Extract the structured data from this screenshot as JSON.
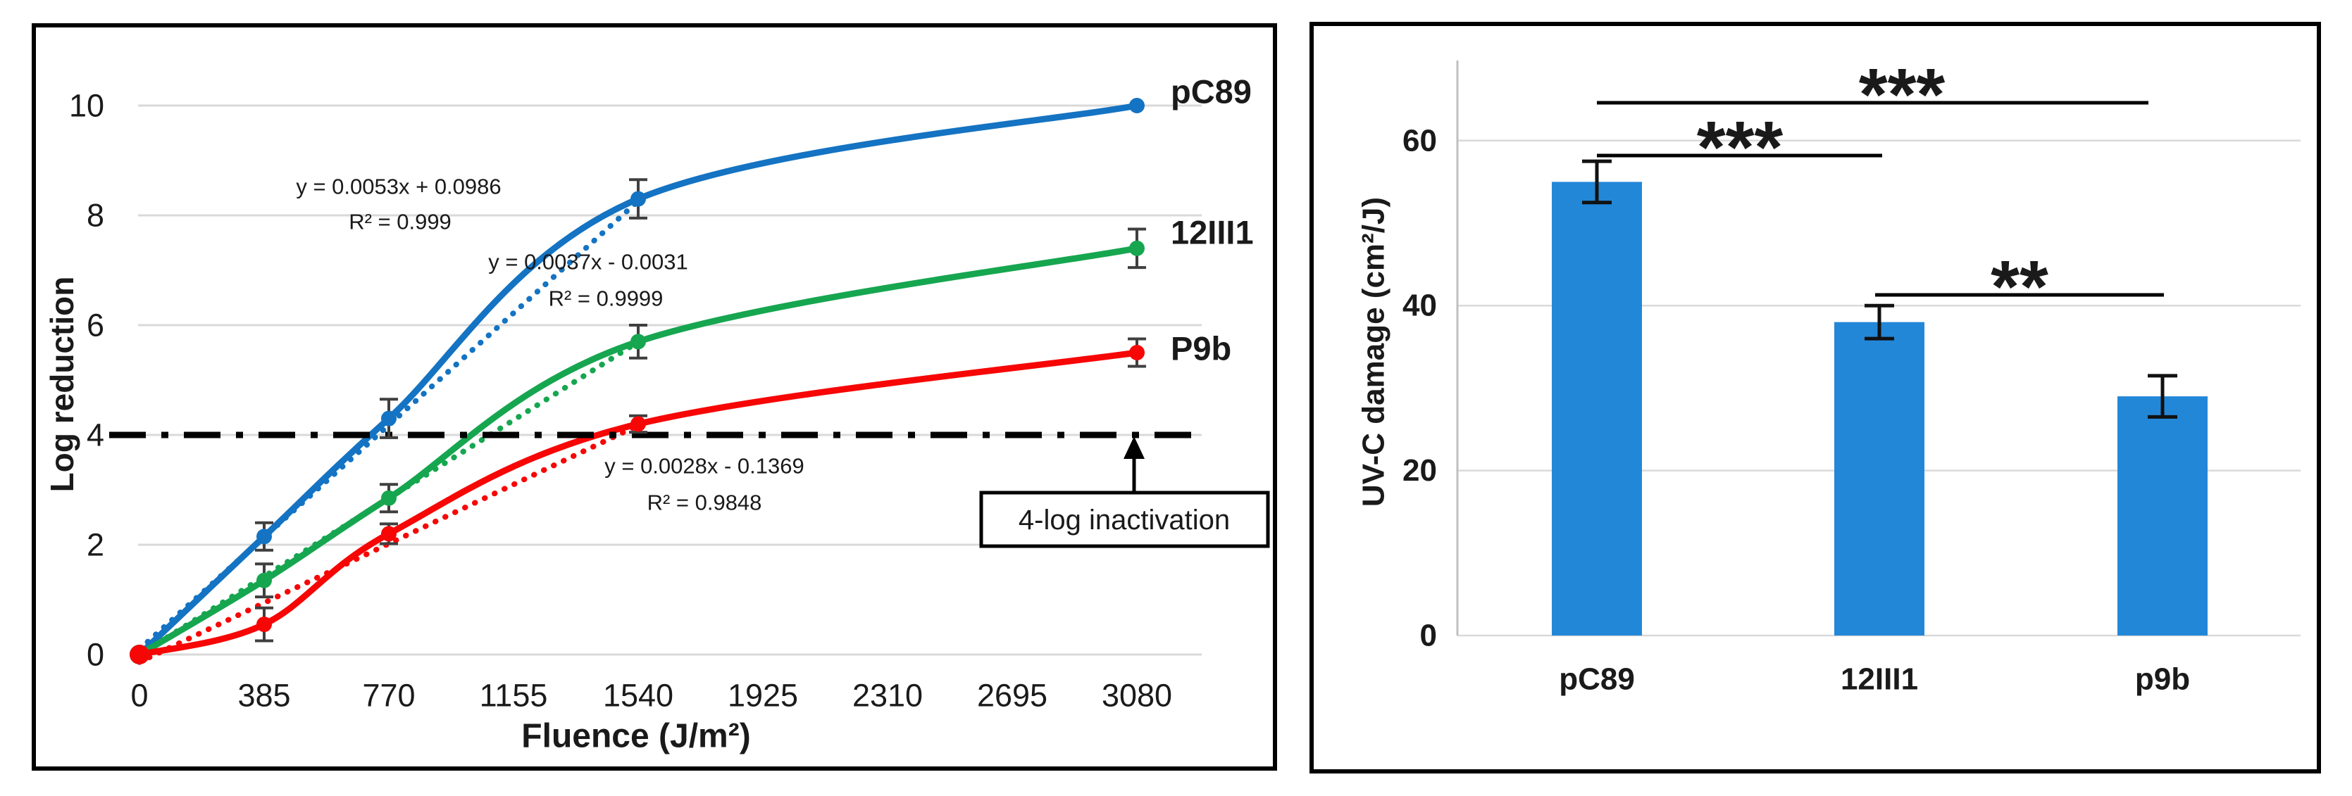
{
  "figure": {
    "panels": [
      {
        "id": "left",
        "name": "uv-dose-response-line-chart-panel"
      },
      {
        "id": "right",
        "name": "uv-damage-bar-chart-panel"
      }
    ]
  },
  "colors": {
    "line_blue": "#1473c2",
    "line_green": "#16a650",
    "line_red": "#f70606",
    "bar_blue": "#2387d8",
    "gridline": "#d9d9d9",
    "axis_line": "#bfbfbf",
    "error_bar_left": "#3f3f3f",
    "error_bar_right": "#111111",
    "equation_text": "#383838",
    "panel_border": "#000000",
    "text": "#1a1a1a"
  },
  "chart_data": [
    {
      "type": "line",
      "title": "",
      "xlabel": "Fluence (J/m²)",
      "ylabel": "Log reduction",
      "x_ticks": [
        0,
        385,
        770,
        1155,
        1540,
        1925,
        2310,
        2695,
        3080
      ],
      "y_ticks": [
        0,
        2,
        4,
        6,
        8,
        10
      ],
      "xlim": [
        0,
        3300
      ],
      "ylim": [
        0,
        10.5
      ],
      "grid": true,
      "legend_position": "right-of-last-point",
      "series": [
        {
          "name": "pC89",
          "color": "#1473c2",
          "x": [
            0,
            385,
            770,
            1540,
            3080
          ],
          "y": [
            0,
            2.15,
            4.3,
            8.3,
            10.0
          ],
          "err": [
            0,
            0.25,
            0.35,
            0.35,
            0
          ],
          "trendline": {
            "equation": "y = 0.0053x + 0.0986",
            "r2": "R² = 0.999",
            "slope": 0.0053,
            "intercept": 0.0986,
            "x_range": [
              0,
              1540
            ]
          }
        },
        {
          "name": "12III1",
          "color": "#16a650",
          "x": [
            0,
            385,
            770,
            1540,
            3080
          ],
          "y": [
            0,
            1.35,
            2.85,
            5.7,
            7.4
          ],
          "err": [
            0,
            0.3,
            0.25,
            0.3,
            0.35
          ],
          "trendline": {
            "equation": "y = 0.0037x - 0.0031",
            "r2": "R² = 0.9999",
            "slope": 0.0037,
            "intercept": -0.0031,
            "x_range": [
              0,
              1540
            ]
          }
        },
        {
          "name": "P9b",
          "color": "#f70606",
          "x": [
            0,
            385,
            770,
            1540,
            3080
          ],
          "y": [
            0,
            0.55,
            2.2,
            4.2,
            5.5
          ],
          "err": [
            0,
            0.3,
            0.18,
            0.15,
            0.25
          ],
          "trendline": {
            "equation": "y = 0.0028x - 0.1369",
            "r2": "R² = 0.9848",
            "slope": 0.0028,
            "intercept": -0.1369,
            "x_range": [
              0,
              1540
            ]
          }
        }
      ],
      "reference_line": {
        "value": 4,
        "style": "dash-dot",
        "color": "#000000",
        "label": "4-log inactivation"
      }
    },
    {
      "type": "bar",
      "title": "",
      "xlabel": "",
      "ylabel": "UV-C damage (cm²/J)",
      "categories": [
        "pC89",
        "12III1",
        "p9b"
      ],
      "values": [
        55,
        38,
        29
      ],
      "errors": [
        2.5,
        2,
        2.5
      ],
      "y_ticks": [
        0,
        20,
        40,
        60
      ],
      "ylim": [
        0,
        70
      ],
      "grid": true,
      "bar_color": "#2387d8",
      "significance": [
        {
          "pair": [
            "pC89",
            "p9b"
          ],
          "label": "***"
        },
        {
          "pair": [
            "pC89",
            "12III1"
          ],
          "label": "***"
        },
        {
          "pair": [
            "12III1",
            "p9b"
          ],
          "label": "**"
        }
      ]
    }
  ]
}
